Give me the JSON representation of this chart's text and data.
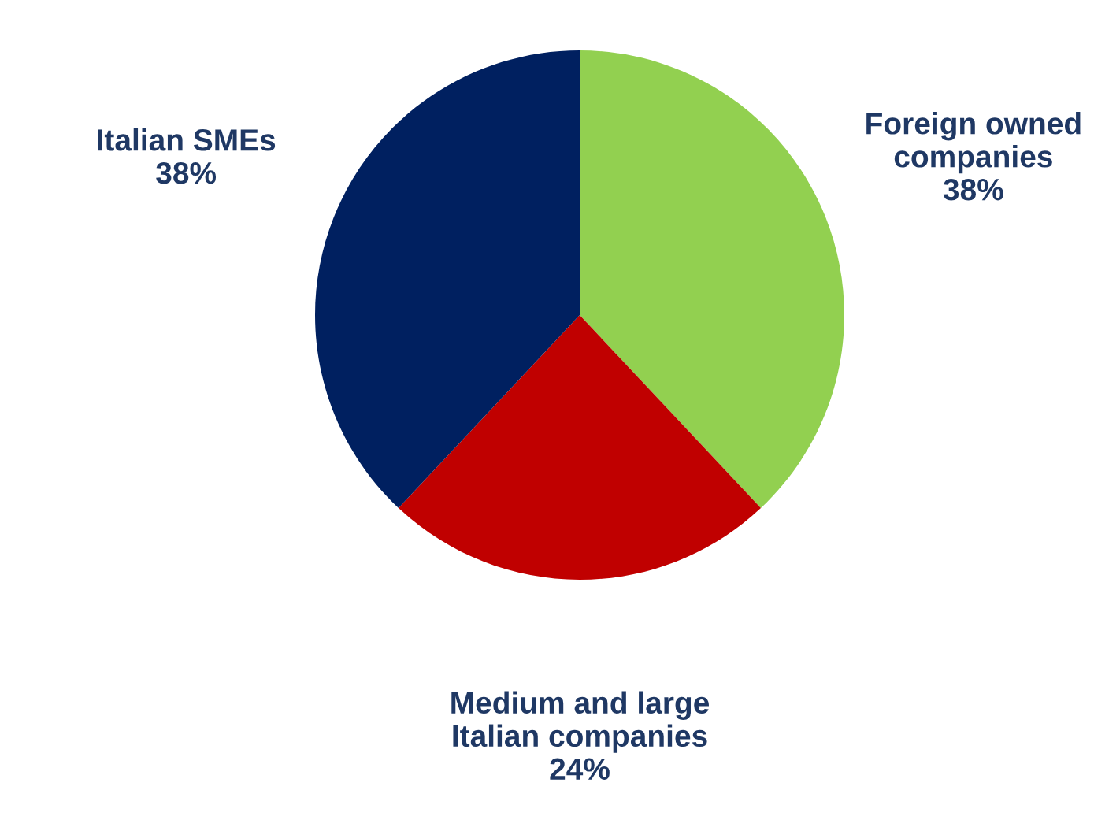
{
  "chart_data": {
    "type": "pie",
    "categories": [
      "Foreign owned\ncompanies",
      "Medium and large\nItalian companies",
      "Italian SMEs"
    ],
    "values": [
      38,
      24,
      38
    ],
    "value_labels": [
      "38%",
      "24%",
      "38%"
    ],
    "colors": [
      "#92d050",
      "#c00000",
      "#002060"
    ]
  }
}
